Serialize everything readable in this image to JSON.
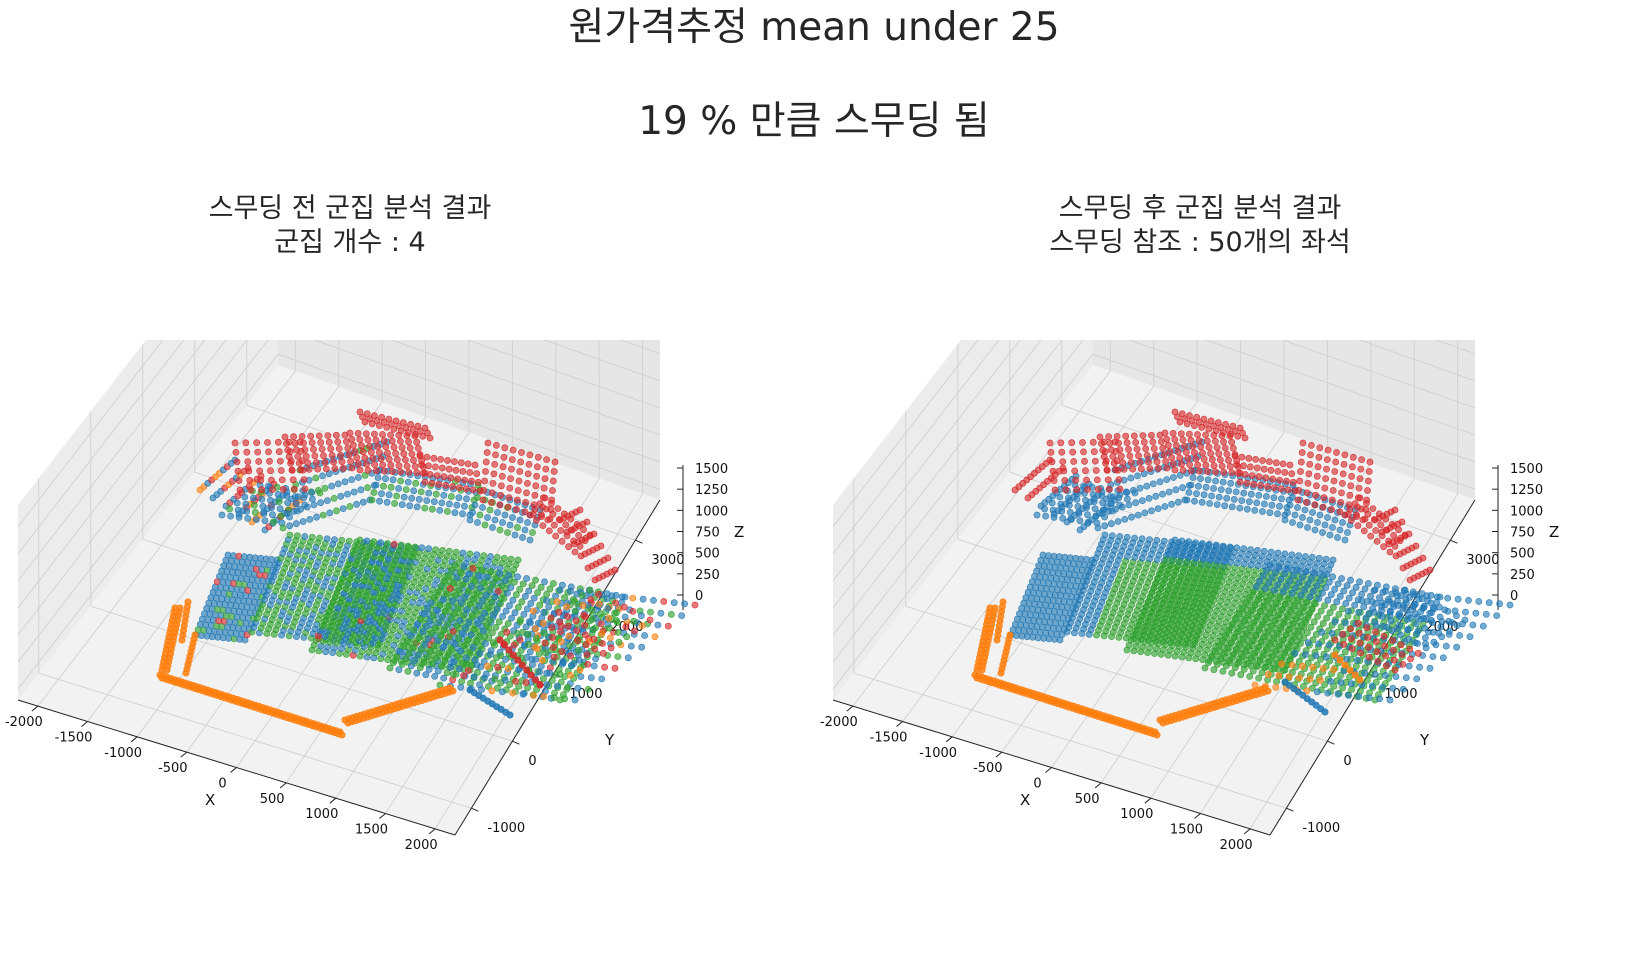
{
  "suptitle": "원가격추정 mean under 25",
  "suptitle2": "19 % 만큼 스무딩 됨",
  "chart_data": [
    {
      "type": "scatter3d",
      "title_line1": "스무딩 전 군집 분석 결과",
      "title_line2": "군집 개수 : 4",
      "xlabel": "X",
      "ylabel": "Y",
      "zlabel": "Z",
      "xlim": [
        -2200,
        2200
      ],
      "ylim": [
        -1400,
        3600
      ],
      "zlim": [
        -100,
        1700
      ],
      "x_ticks": [
        "-2000",
        "-1500",
        "-1000",
        "-500",
        "0",
        "500",
        "1000",
        "1500",
        "2000"
      ],
      "y_ticks": [
        "-1000",
        "0",
        "1000",
        "2000",
        "3000"
      ],
      "z_ticks": [
        "0",
        "250",
        "500",
        "750",
        "1000",
        "1250",
        "1500"
      ],
      "cluster_colors": [
        "#1f77b4",
        "#ff7f0e",
        "#2ca02c",
        "#d62728"
      ],
      "cluster_count": 4
    },
    {
      "type": "scatter3d",
      "title_line1": "스무딩 후 군집 분석 결과",
      "title_line2": "스무딩 참조 : 50개의 좌석",
      "xlabel": "X",
      "ylabel": "Y",
      "zlabel": "Z",
      "xlim": [
        -2200,
        2200
      ],
      "ylim": [
        -1400,
        3600
      ],
      "zlim": [
        -100,
        1700
      ],
      "x_ticks": [
        "-2000",
        "-1500",
        "-1000",
        "-500",
        "0",
        "500",
        "1000",
        "1500",
        "2000"
      ],
      "y_ticks": [
        "-1000",
        "0",
        "1000",
        "2000",
        "3000"
      ],
      "z_ticks": [
        "0",
        "250",
        "500",
        "750",
        "1000",
        "1250",
        "1500"
      ],
      "cluster_colors": [
        "#1f77b4",
        "#ff7f0e",
        "#2ca02c",
        "#d62728"
      ],
      "smoothing_reference_seats": 50
    }
  ]
}
